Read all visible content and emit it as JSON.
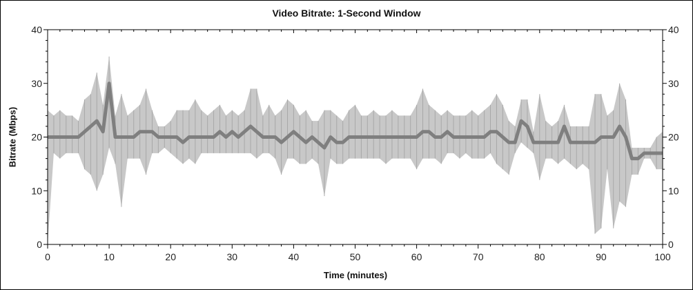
{
  "chart_data": {
    "type": "area",
    "title": "Video Bitrate: 1-Second Window",
    "xlabel": "Time (minutes)",
    "ylabel": "Bitrate (Mbps)",
    "xlim": [
      0,
      100
    ],
    "ylim": [
      0,
      40
    ],
    "x_ticks": [
      0,
      10,
      20,
      30,
      40,
      50,
      60,
      70,
      80,
      90,
      100
    ],
    "y_ticks": [
      0,
      10,
      20,
      30,
      40
    ],
    "y_axis_mirrored_right": true,
    "grid": false,
    "colors": {
      "mean": "#7f7f7f",
      "range": "#c8c8c8",
      "axis": "#000000"
    },
    "x": [
      0,
      1,
      2,
      3,
      4,
      5,
      6,
      7,
      8,
      9,
      10,
      11,
      12,
      13,
      14,
      15,
      16,
      17,
      18,
      19,
      20,
      21,
      22,
      23,
      24,
      25,
      26,
      27,
      28,
      29,
      30,
      31,
      32,
      33,
      34,
      35,
      36,
      37,
      38,
      39,
      40,
      41,
      42,
      43,
      44,
      45,
      46,
      47,
      48,
      49,
      50,
      51,
      52,
      53,
      54,
      55,
      56,
      57,
      58,
      59,
      60,
      61,
      62,
      63,
      64,
      65,
      66,
      67,
      68,
      69,
      70,
      71,
      72,
      73,
      74,
      75,
      76,
      77,
      78,
      79,
      80,
      81,
      82,
      83,
      84,
      85,
      86,
      87,
      88,
      89,
      90,
      91,
      92,
      93,
      94,
      95,
      96,
      97,
      98,
      99,
      100
    ],
    "series": [
      {
        "key": "mean",
        "values": [
          20,
          20,
          20,
          20,
          20,
          20,
          21,
          22,
          23,
          21,
          30,
          20,
          20,
          20,
          20,
          21,
          21,
          21,
          20,
          20,
          20,
          20,
          19,
          20,
          20,
          20,
          20,
          20,
          21,
          20,
          21,
          20,
          21,
          22,
          21,
          20,
          20,
          20,
          19,
          20,
          21,
          20,
          19,
          20,
          19,
          18,
          20,
          19,
          19,
          20,
          20,
          20,
          20,
          20,
          20,
          20,
          20,
          20,
          20,
          20,
          20,
          21,
          21,
          20,
          20,
          21,
          20,
          20,
          20,
          20,
          20,
          20,
          21,
          21,
          20,
          19,
          19,
          23,
          22,
          19,
          19,
          19,
          19,
          19,
          22,
          19,
          19,
          19,
          19,
          19,
          20,
          20,
          20,
          22,
          20,
          16,
          16,
          17,
          17,
          17,
          17
        ]
      },
      {
        "key": "min",
        "values": [
          0,
          17,
          16,
          17,
          17,
          17,
          14,
          13,
          10,
          13,
          18,
          15,
          7,
          16,
          16,
          16,
          13,
          17,
          17,
          18,
          17,
          16,
          15,
          16,
          15,
          17,
          17,
          17,
          17,
          17,
          17,
          17,
          17,
          17,
          16,
          17,
          17,
          16,
          13,
          16,
          16,
          15,
          15,
          16,
          15,
          9,
          16,
          15,
          15,
          16,
          16,
          16,
          16,
          16,
          16,
          15,
          16,
          16,
          16,
          16,
          14,
          16,
          16,
          16,
          15,
          17,
          17,
          16,
          17,
          16,
          16,
          16,
          17,
          15,
          14,
          13,
          17,
          19,
          18,
          17,
          12,
          16,
          16,
          15,
          16,
          15,
          14,
          15,
          14,
          2,
          3,
          14,
          3,
          8,
          7,
          13,
          13,
          16,
          16,
          14,
          14
        ]
      },
      {
        "key": "max",
        "values": [
          25,
          24,
          25,
          24,
          24,
          23,
          27,
          28,
          32,
          26,
          35,
          24,
          28,
          24,
          25,
          26,
          29,
          25,
          22,
          22,
          23,
          25,
          25,
          25,
          27,
          25,
          24,
          25,
          26,
          24,
          25,
          24,
          25,
          29,
          29,
          24,
          26,
          24,
          25,
          27,
          26,
          24,
          25,
          23,
          23,
          25,
          25,
          24,
          23,
          25,
          26,
          24,
          24,
          25,
          24,
          24,
          25,
          24,
          24,
          24,
          26,
          29,
          26,
          25,
          24,
          25,
          24,
          24,
          24,
          25,
          24,
          25,
          26,
          28,
          26,
          23,
          22,
          27,
          27,
          21,
          28,
          23,
          22,
          23,
          26,
          22,
          22,
          22,
          22,
          28,
          28,
          24,
          25,
          30,
          27,
          18,
          18,
          18,
          18,
          20,
          21
        ]
      }
    ]
  }
}
